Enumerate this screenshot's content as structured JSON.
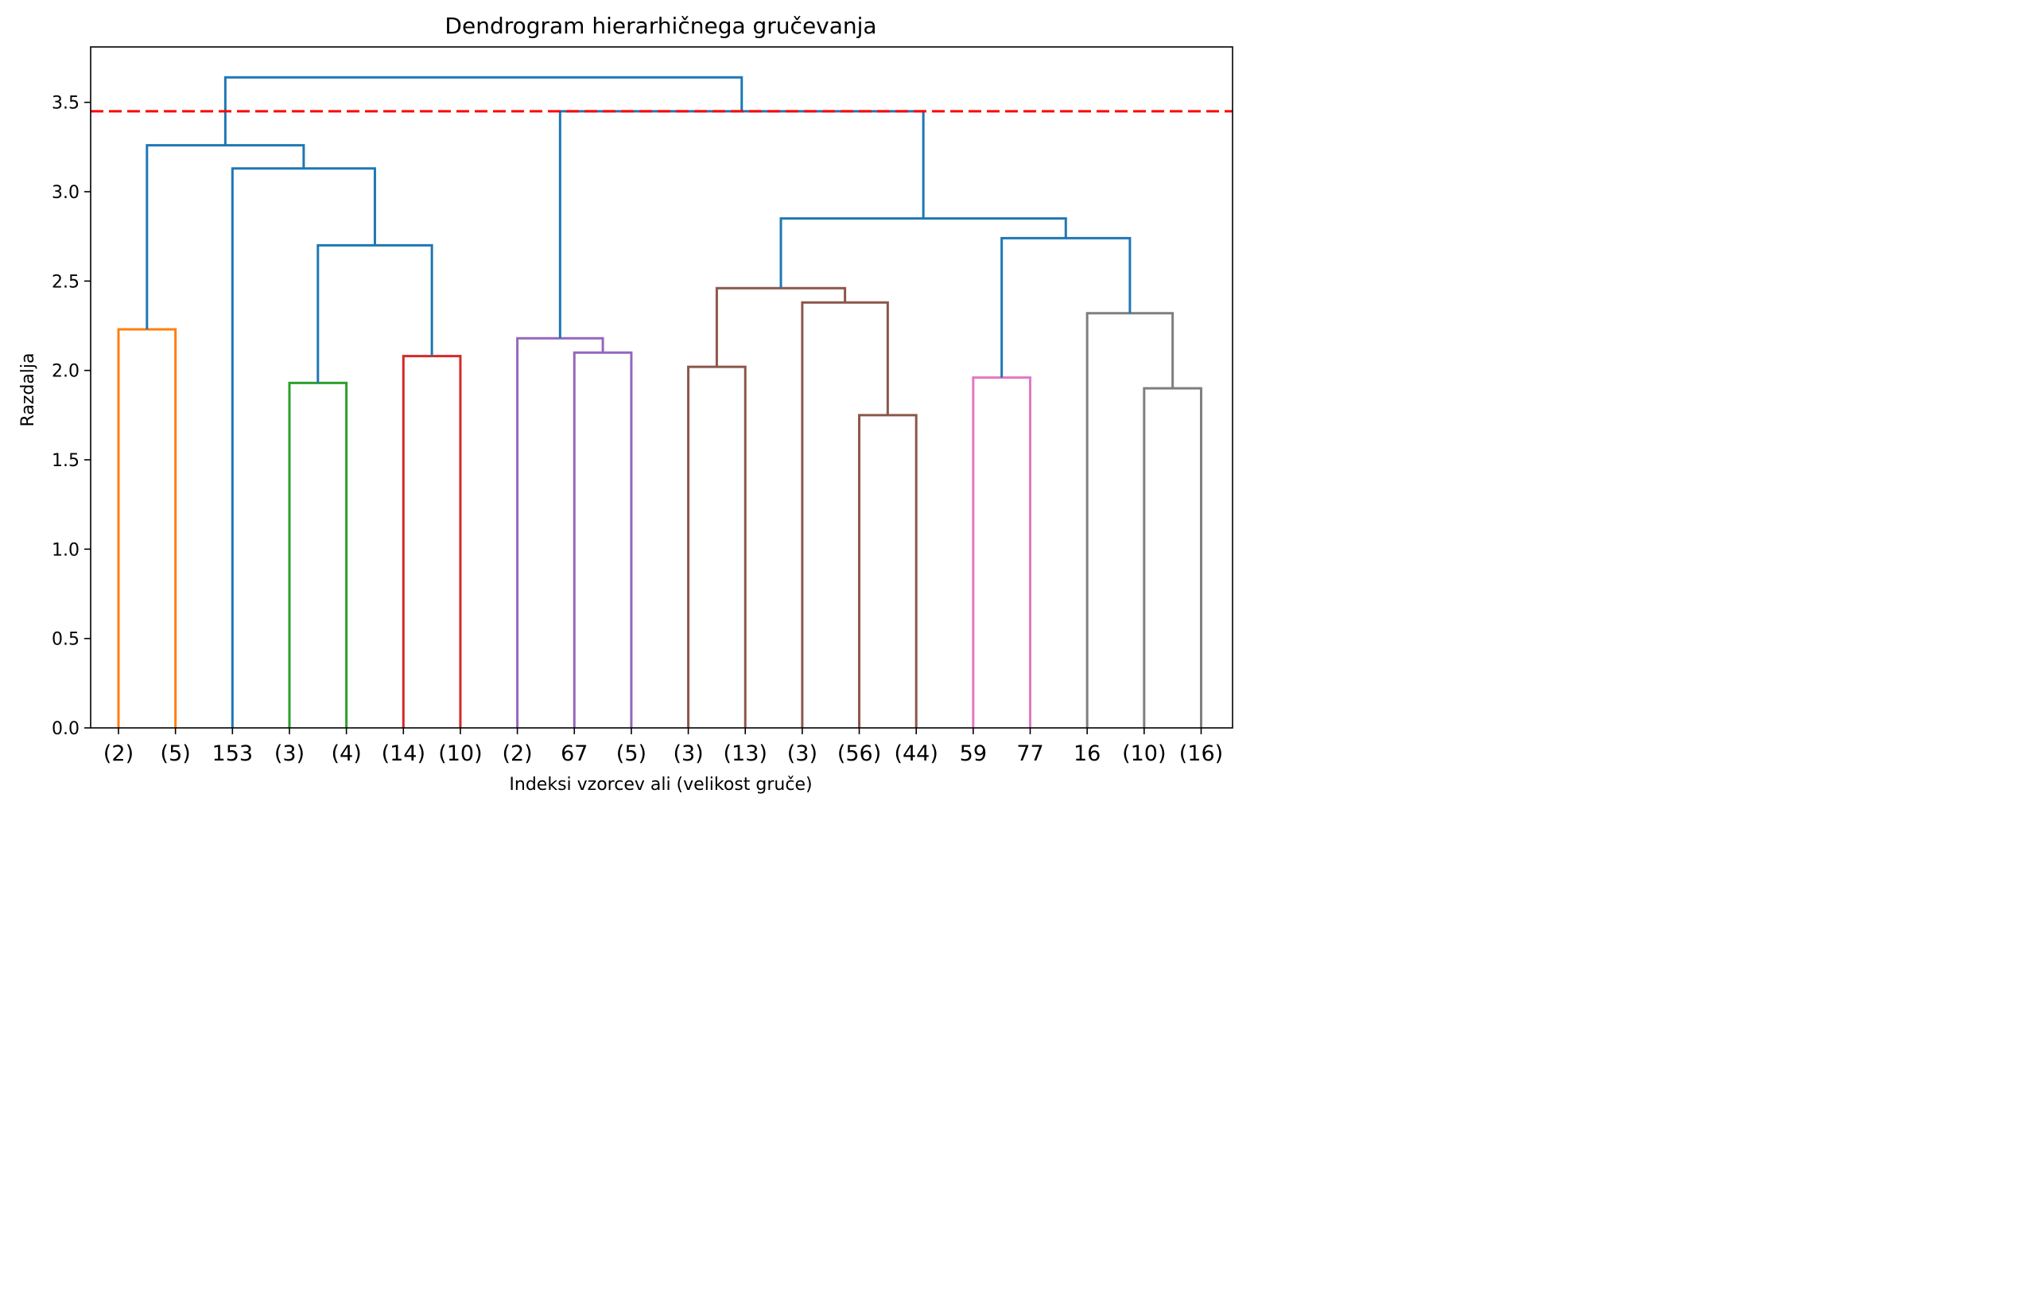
{
  "chart_data": {
    "type": "dendrogram",
    "title": "Dendrogram hierarhičnega gručevanja",
    "xlabel": "Indeksi vzorcev ali (velikost gruče)",
    "ylabel": "Razdalja",
    "ylim": [
      0,
      3.81
    ],
    "y_ticks": [
      "0.0",
      "0.5",
      "1.0",
      "1.5",
      "2.0",
      "2.5",
      "3.0",
      "3.5"
    ],
    "leaf_labels": [
      "(2)",
      "(5)",
      "153",
      "(3)",
      "(4)",
      "(14)",
      "(10)",
      "(2)",
      "67",
      "(5)",
      "(3)",
      "(13)",
      "(3)",
      "(56)",
      "(44)",
      "59",
      "77",
      "16",
      "(10)",
      "(16)"
    ],
    "cut_height": 3.45,
    "cut_color": "#ff0000",
    "link_colors": {
      "C0": "#1f77b4",
      "C1": "#ff7f0e",
      "C2": "#2ca02c",
      "C3": "#d62728",
      "C4": "#9467bd",
      "C5": "#8c564b",
      "C6": "#e377c2",
      "C7": "#7f7f7f"
    },
    "merges": [
      {
        "id": "A",
        "left": 0,
        "right": 1,
        "height": 2.23,
        "color": "C1"
      },
      {
        "id": "B",
        "left": 3,
        "right": 4,
        "height": 1.93,
        "color": "C2"
      },
      {
        "id": "C",
        "left": 5,
        "right": 6,
        "height": 2.08,
        "color": "C3"
      },
      {
        "id": "D",
        "left": 8,
        "right": 9,
        "height": 2.1,
        "color": "C4"
      },
      {
        "id": "E",
        "left": 7,
        "right": "D",
        "height": 2.18,
        "color": "C4"
      },
      {
        "id": "F",
        "left": 10,
        "right": 11,
        "height": 2.02,
        "color": "C5"
      },
      {
        "id": "G",
        "left": 13,
        "right": 14,
        "height": 1.75,
        "color": "C5"
      },
      {
        "id": "H",
        "left": 12,
        "right": "G",
        "height": 2.38,
        "color": "C5"
      },
      {
        "id": "I",
        "left": "F",
        "right": "H",
        "height": 2.46,
        "color": "C5"
      },
      {
        "id": "J",
        "left": 15,
        "right": 16,
        "height": 1.96,
        "color": "C6"
      },
      {
        "id": "K",
        "left": 18,
        "right": 19,
        "height": 1.9,
        "color": "C7"
      },
      {
        "id": "L",
        "left": 17,
        "right": "K",
        "height": 2.32,
        "color": "C7"
      },
      {
        "id": "M",
        "left": "B",
        "right": "C",
        "height": 2.7,
        "color": "C0"
      },
      {
        "id": "N",
        "left": 2,
        "right": "M",
        "height": 3.13,
        "color": "C0"
      },
      {
        "id": "O",
        "left": "A",
        "right": "N",
        "height": 3.26,
        "color": "C0"
      },
      {
        "id": "P",
        "left": "J",
        "right": "L",
        "height": 2.74,
        "color": "C0"
      },
      {
        "id": "Q",
        "left": "I",
        "right": "P",
        "height": 2.85,
        "color": "C0"
      },
      {
        "id": "R",
        "left": "E",
        "right": "Q",
        "height": 3.45,
        "color": "C0"
      },
      {
        "id": "S",
        "left": "O",
        "right": "R",
        "height": 3.64,
        "color": "C0"
      }
    ]
  }
}
